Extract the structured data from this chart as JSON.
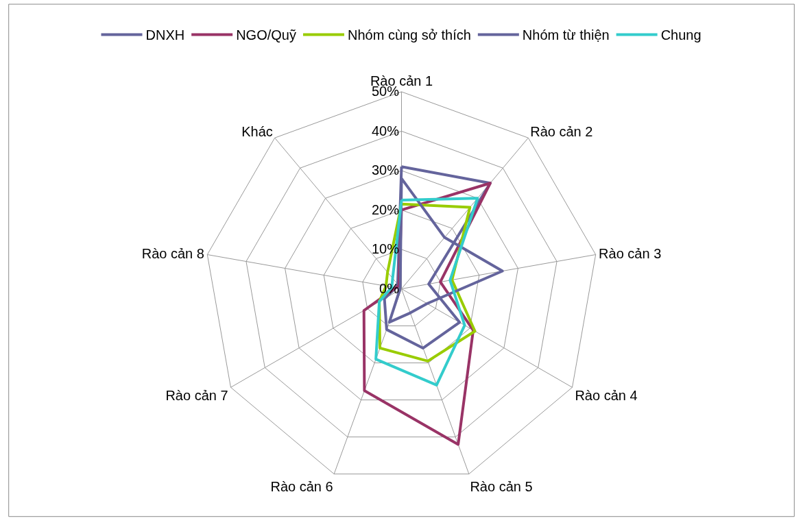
{
  "chart_data": {
    "type": "radar",
    "categories": [
      "Rào cản 1",
      "Rào cản 2",
      "Rào cản 3",
      "Rào cản 4",
      "Rào cản 5",
      "Rào cản 6",
      "Rào cản 7",
      "Rào cản 8",
      "Khác"
    ],
    "series": [
      {
        "name": "DNXH",
        "color": "#64649c",
        "values": [
          31,
          35,
          7,
          17,
          16,
          11,
          5,
          1.5,
          1.5
        ]
      },
      {
        "name": "NGO/Quỹ",
        "color": "#993366",
        "values": [
          20,
          35,
          10,
          21,
          42,
          27.5,
          11,
          1.5,
          1
        ]
      },
      {
        "name": "Nhóm cùng sở thích",
        "color": "#99cc00",
        "values": [
          21.5,
          27,
          13,
          21.5,
          19.5,
          16,
          6.5,
          4,
          5.5
        ]
      },
      {
        "name": "Nhóm từ thiện",
        "color": "#64649c",
        "values": [
          28,
          17,
          26,
          7.5,
          6.5,
          9,
          0.5,
          0.5,
          0.5
        ]
      },
      {
        "name": "Chung",
        "color": "#33cccc",
        "values": [
          22.5,
          30,
          12.5,
          18.5,
          26,
          19,
          6.5,
          2.5,
          3.5
        ]
      }
    ],
    "ylim": [
      0,
      50
    ],
    "yticks": [
      {
        "value": 0,
        "label": "0%"
      },
      {
        "value": 10,
        "label": "10%"
      },
      {
        "value": 20,
        "label": "20%"
      },
      {
        "value": 30,
        "label": "30%"
      },
      {
        "value": 40,
        "label": "40%"
      },
      {
        "value": 50,
        "label": "50%"
      }
    ],
    "legend": "top",
    "marker": "none",
    "line_style": "solid",
    "grid": true
  }
}
